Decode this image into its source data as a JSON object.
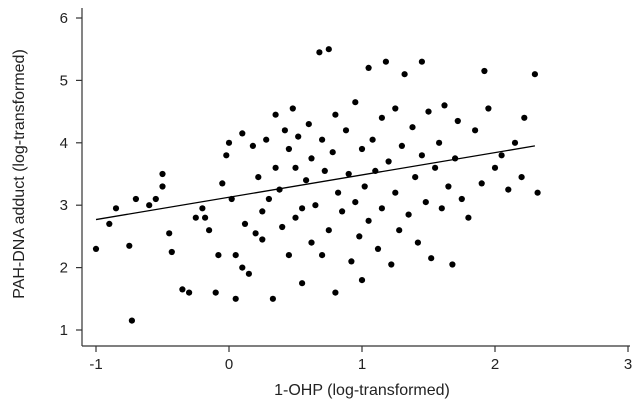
{
  "chart_data": {
    "type": "scatter",
    "xlabel": "1-OHP (log-transformed)",
    "ylabel": "PAH-DNA adduct (log-transformed)",
    "xlim": [
      -1,
      3
    ],
    "ylim": [
      1,
      6
    ],
    "x_ticks": [
      "-1",
      "0",
      "1",
      "2",
      "3"
    ],
    "y_ticks": [
      "1",
      "2",
      "3",
      "4",
      "5",
      "6"
    ],
    "grid": false,
    "trend_line": {
      "x": [
        -1.0,
        2.3
      ],
      "y": [
        2.77,
        3.95
      ]
    },
    "point_color": "#000000",
    "line_color": "#000000",
    "points": [
      [
        -1.0,
        2.3
      ],
      [
        -0.9,
        2.7
      ],
      [
        -0.85,
        2.95
      ],
      [
        -0.75,
        2.35
      ],
      [
        -0.73,
        1.15
      ],
      [
        -0.7,
        3.1
      ],
      [
        -0.6,
        3.0
      ],
      [
        -0.55,
        3.1
      ],
      [
        -0.5,
        3.5
      ],
      [
        -0.5,
        3.3
      ],
      [
        -0.45,
        2.55
      ],
      [
        -0.43,
        2.25
      ],
      [
        -0.35,
        1.65
      ],
      [
        -0.3,
        1.6
      ],
      [
        -0.25,
        2.8
      ],
      [
        -0.2,
        2.95
      ],
      [
        -0.18,
        2.8
      ],
      [
        -0.15,
        2.6
      ],
      [
        -0.1,
        1.6
      ],
      [
        -0.08,
        2.2
      ],
      [
        -0.05,
        3.35
      ],
      [
        -0.02,
        3.8
      ],
      [
        0.0,
        4.0
      ],
      [
        0.02,
        3.1
      ],
      [
        0.05,
        2.2
      ],
      [
        0.05,
        1.5
      ],
      [
        0.1,
        4.15
      ],
      [
        0.1,
        2.0
      ],
      [
        0.12,
        2.7
      ],
      [
        0.15,
        1.9
      ],
      [
        0.18,
        3.95
      ],
      [
        0.2,
        2.55
      ],
      [
        0.22,
        3.45
      ],
      [
        0.25,
        2.9
      ],
      [
        0.25,
        2.45
      ],
      [
        0.28,
        4.05
      ],
      [
        0.3,
        3.1
      ],
      [
        0.33,
        1.5
      ],
      [
        0.35,
        4.45
      ],
      [
        0.35,
        3.6
      ],
      [
        0.38,
        3.25
      ],
      [
        0.4,
        2.65
      ],
      [
        0.42,
        4.2
      ],
      [
        0.45,
        2.2
      ],
      [
        0.45,
        3.9
      ],
      [
        0.48,
        4.55
      ],
      [
        0.5,
        2.8
      ],
      [
        0.5,
        3.6
      ],
      [
        0.52,
        4.1
      ],
      [
        0.55,
        1.75
      ],
      [
        0.55,
        2.95
      ],
      [
        0.58,
        3.4
      ],
      [
        0.6,
        4.3
      ],
      [
        0.62,
        2.4
      ],
      [
        0.62,
        3.75
      ],
      [
        0.65,
        3.0
      ],
      [
        0.68,
        5.45
      ],
      [
        0.7,
        2.2
      ],
      [
        0.7,
        4.05
      ],
      [
        0.72,
        3.55
      ],
      [
        0.75,
        5.5
      ],
      [
        0.75,
        2.6
      ],
      [
        0.78,
        3.85
      ],
      [
        0.8,
        4.45
      ],
      [
        0.8,
        1.6
      ],
      [
        0.82,
        3.2
      ],
      [
        0.85,
        2.9
      ],
      [
        0.88,
        4.2
      ],
      [
        0.9,
        3.5
      ],
      [
        0.92,
        2.1
      ],
      [
        0.95,
        4.65
      ],
      [
        0.95,
        3.05
      ],
      [
        0.98,
        2.5
      ],
      [
        1.0,
        3.9
      ],
      [
        1.0,
        1.8
      ],
      [
        1.02,
        3.3
      ],
      [
        1.05,
        2.75
      ],
      [
        1.05,
        5.2
      ],
      [
        1.08,
        4.05
      ],
      [
        1.1,
        3.55
      ],
      [
        1.12,
        2.3
      ],
      [
        1.15,
        4.4
      ],
      [
        1.15,
        2.95
      ],
      [
        1.18,
        5.3
      ],
      [
        1.2,
        3.7
      ],
      [
        1.22,
        2.05
      ],
      [
        1.25,
        4.55
      ],
      [
        1.25,
        3.2
      ],
      [
        1.28,
        2.6
      ],
      [
        1.3,
        3.95
      ],
      [
        1.32,
        5.1
      ],
      [
        1.35,
        2.85
      ],
      [
        1.38,
        4.25
      ],
      [
        1.4,
        3.45
      ],
      [
        1.42,
        2.4
      ],
      [
        1.45,
        5.3
      ],
      [
        1.45,
        3.8
      ],
      [
        1.48,
        3.05
      ],
      [
        1.5,
        4.5
      ],
      [
        1.52,
        2.15
      ],
      [
        1.55,
        3.6
      ],
      [
        1.58,
        4.0
      ],
      [
        1.6,
        2.95
      ],
      [
        1.62,
        4.6
      ],
      [
        1.65,
        3.3
      ],
      [
        1.68,
        2.05
      ],
      [
        1.7,
        3.75
      ],
      [
        1.72,
        4.35
      ],
      [
        1.75,
        3.1
      ],
      [
        1.8,
        2.8
      ],
      [
        1.85,
        4.2
      ],
      [
        1.9,
        3.35
      ],
      [
        1.95,
        4.55
      ],
      [
        2.0,
        3.6
      ],
      [
        2.05,
        3.8
      ],
      [
        2.1,
        3.25
      ],
      [
        2.15,
        4.0
      ],
      [
        2.2,
        3.45
      ],
      [
        2.22,
        4.4
      ],
      [
        2.3,
        5.1
      ],
      [
        2.32,
        3.2
      ],
      [
        1.92,
        5.15
      ]
    ]
  }
}
